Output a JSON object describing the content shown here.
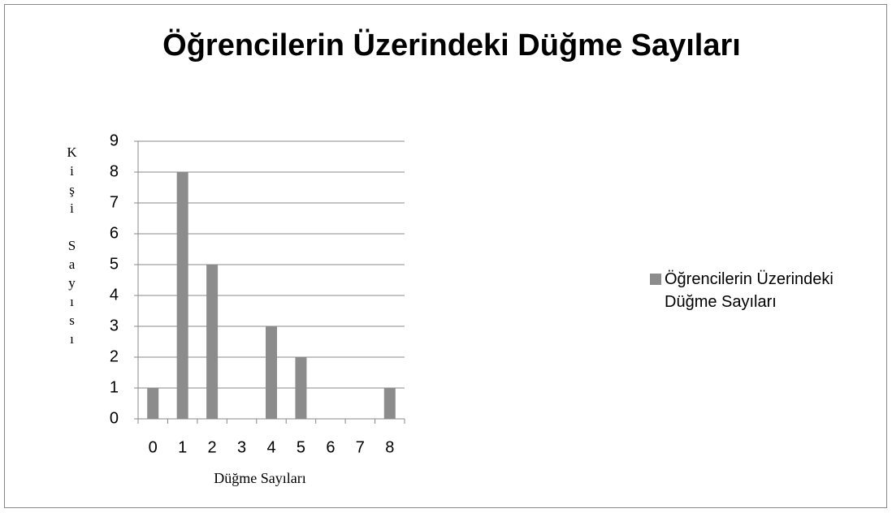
{
  "chart_data": {
    "type": "bar",
    "title": "Öğrencilerin Üzerindeki Düğme Sayıları",
    "x_label": "Düğme Sayıları",
    "y_label": "Kişi Sayısı",
    "categories": [
      "0",
      "1",
      "2",
      "3",
      "4",
      "5",
      "6",
      "7",
      "8"
    ],
    "series": [
      {
        "name": "Öğrencilerin Üzerindeki Düğme Sayıları",
        "color": "#8c8c8c",
        "values": [
          1,
          8,
          5,
          0,
          3,
          2,
          0,
          0,
          1
        ]
      }
    ],
    "ylim": [
      0,
      9
    ],
    "yticks": [
      0,
      1,
      2,
      3,
      4,
      5,
      6,
      7,
      8,
      9
    ],
    "grid": true,
    "legend": "right"
  }
}
